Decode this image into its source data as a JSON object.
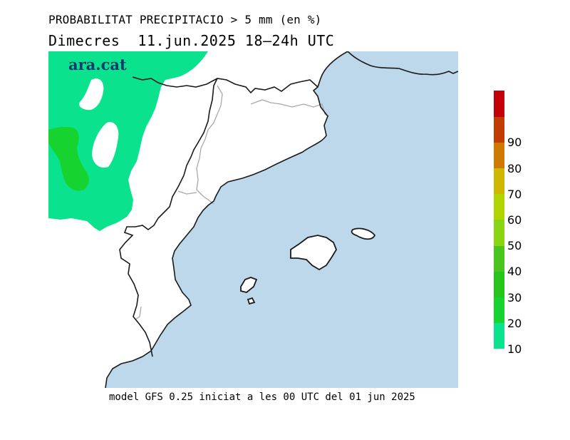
{
  "title": {
    "line1": "PROBABILITAT PRECIPITACIO > 5 mm (en %)",
    "line2": "Dimecres  11.jun.2025 18–24h UTC"
  },
  "brand": "ara.cat",
  "footer": "model GFS 0.25 iniciat a les 00 UTC del 01 jun 2025",
  "colors": {
    "sea": "#bcd8ea",
    "land": "#ffffff",
    "coast": "#1a1a1a",
    "region_border": "#a8a8a8",
    "band_10": "#0be28e",
    "band_20": "#17d330"
  },
  "legend": {
    "items": [
      {
        "label": "10",
        "color": "#0be28e"
      },
      {
        "label": "20",
        "color": "#17d330"
      },
      {
        "label": "30",
        "color": "#27c51b"
      },
      {
        "label": "40",
        "color": "#49c51d"
      },
      {
        "label": "50",
        "color": "#8ad411"
      },
      {
        "label": "60",
        "color": "#b0d400"
      },
      {
        "label": "70",
        "color": "#cfb700"
      },
      {
        "label": "80",
        "color": "#cf7900"
      },
      {
        "label": "90",
        "color": "#c23c00"
      },
      {
        "label": "",
        "color": "#c30008"
      }
    ]
  }
}
